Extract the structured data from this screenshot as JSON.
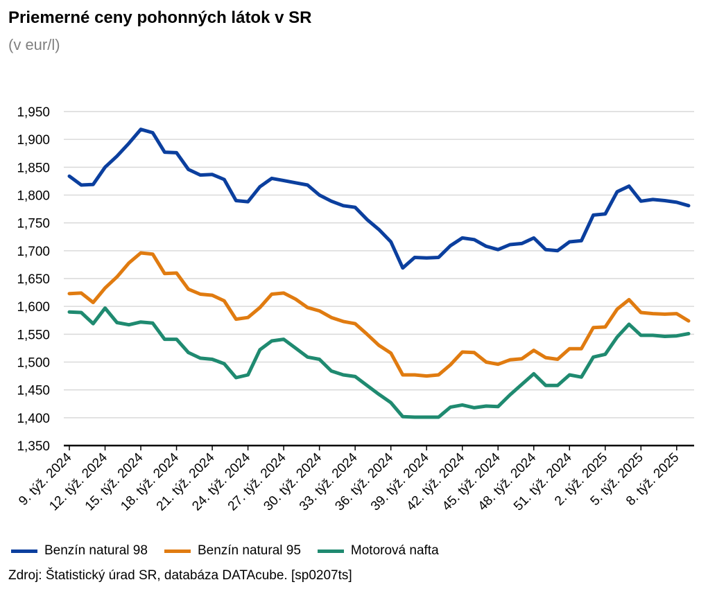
{
  "header": {
    "title": "Priemerné ceny pohonných látok v SR",
    "subtitle": "(v eur/l)"
  },
  "source": "Zdroj: Štatistický úrad SR, databáza DATAcube. [sp0207ts]",
  "colors": {
    "benzin98": "#0b3f9e",
    "benzin95": "#e07b10",
    "nafta": "#1f8a70",
    "grid": "#d9d9d9",
    "axis": "#000000"
  },
  "chart_data": {
    "type": "line",
    "title": "Priemerné ceny pohonných látok v SR",
    "subtitle": "(v eur/l)",
    "ylim": [
      1.35,
      1.95
    ],
    "yticks": [
      "1,350",
      "1,400",
      "1,450",
      "1,500",
      "1,550",
      "1,600",
      "1,650",
      "1,700",
      "1,750",
      "1,800",
      "1,850",
      "1,900",
      "1,950"
    ],
    "grid": true,
    "legend_position": "bottom-left",
    "x_tick_labels": [
      {
        "index": 0,
        "label": "9. týž. 2024"
      },
      {
        "index": 3,
        "label": "12. týž. 2024"
      },
      {
        "index": 6,
        "label": "15. týž. 2024"
      },
      {
        "index": 9,
        "label": "18. týž. 2024"
      },
      {
        "index": 12,
        "label": "21. týž. 2024"
      },
      {
        "index": 15,
        "label": "24. týž. 2024"
      },
      {
        "index": 18,
        "label": "27. týž. 2024"
      },
      {
        "index": 21,
        "label": "30. týž. 2024"
      },
      {
        "index": 24,
        "label": "33. týž. 2024"
      },
      {
        "index": 27,
        "label": "36. týž. 2024"
      },
      {
        "index": 30,
        "label": "39. týž. 2024"
      },
      {
        "index": 33,
        "label": "42. týž. 2024"
      },
      {
        "index": 36,
        "label": "45. týž. 2024"
      },
      {
        "index": 39,
        "label": "48. týž. 2024"
      },
      {
        "index": 42,
        "label": "51. týž. 2024"
      },
      {
        "index": 45,
        "label": "2. týž. 2025"
      },
      {
        "index": 48,
        "label": "5. týž. 2025"
      },
      {
        "index": 51,
        "label": "8. týž. 2025"
      }
    ],
    "series": [
      {
        "name": "Benzín natural 98",
        "color": "#0b3f9e",
        "values": [
          1.834,
          1.818,
          1.819,
          1.85,
          1.87,
          1.893,
          1.918,
          1.912,
          1.877,
          1.876,
          1.846,
          1.836,
          1.837,
          1.828,
          1.79,
          1.788,
          1.815,
          1.83,
          1.826,
          1.822,
          1.818,
          1.8,
          1.789,
          1.781,
          1.778,
          1.756,
          1.738,
          1.716,
          1.669,
          1.688,
          1.687,
          1.688,
          1.709,
          1.723,
          1.72,
          1.708,
          1.702,
          1.711,
          1.713,
          1.723,
          1.702,
          1.7,
          1.716,
          1.718,
          1.764,
          1.766,
          1.806,
          1.816,
          1.789,
          1.792,
          1.79,
          1.787,
          1.781
        ]
      },
      {
        "name": "Benzín natural 95",
        "color": "#e07b10",
        "values": [
          1.623,
          1.624,
          1.607,
          1.633,
          1.653,
          1.678,
          1.696,
          1.694,
          1.659,
          1.66,
          1.631,
          1.622,
          1.62,
          1.61,
          1.577,
          1.58,
          1.598,
          1.622,
          1.624,
          1.613,
          1.598,
          1.592,
          1.58,
          1.573,
          1.569,
          1.55,
          1.53,
          1.516,
          1.477,
          1.477,
          1.475,
          1.477,
          1.495,
          1.518,
          1.517,
          1.5,
          1.496,
          1.504,
          1.506,
          1.521,
          1.508,
          1.505,
          1.524,
          1.524,
          1.562,
          1.563,
          1.595,
          1.612,
          1.589,
          1.587,
          1.586,
          1.587,
          1.574
        ]
      },
      {
        "name": "Motorová nafta",
        "color": "#1f8a70",
        "values": [
          1.59,
          1.589,
          1.569,
          1.597,
          1.571,
          1.567,
          1.572,
          1.57,
          1.541,
          1.541,
          1.517,
          1.507,
          1.505,
          1.497,
          1.472,
          1.477,
          1.522,
          1.538,
          1.541,
          1.525,
          1.509,
          1.505,
          1.484,
          1.477,
          1.474,
          1.458,
          1.442,
          1.427,
          1.402,
          1.401,
          1.401,
          1.401,
          1.419,
          1.423,
          1.418,
          1.421,
          1.42,
          1.441,
          1.46,
          1.479,
          1.458,
          1.458,
          1.477,
          1.473,
          1.509,
          1.514,
          1.545,
          1.568,
          1.548,
          1.548,
          1.546,
          1.547,
          1.551
        ]
      }
    ]
  }
}
